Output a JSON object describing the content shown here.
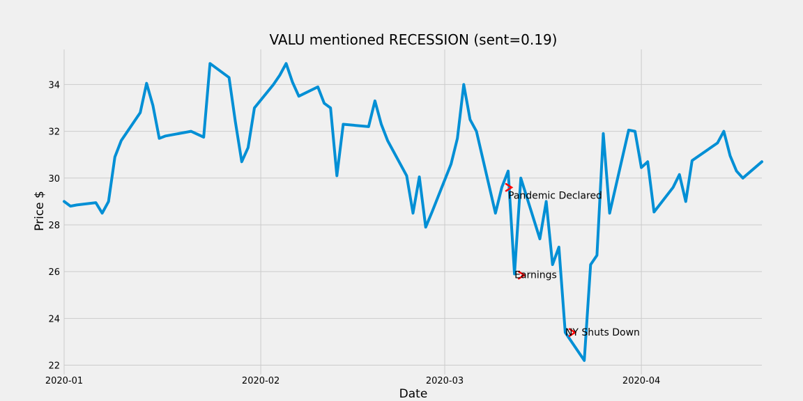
{
  "chart_data": {
    "type": "line",
    "title": "VALU mentioned RECESSION (sent=0.19)",
    "xlabel": "Date",
    "ylabel": "Price $",
    "xlim": [
      "2020-01-01",
      "2020-04-20"
    ],
    "ylim": [
      21.6,
      35.5
    ],
    "grid": true,
    "x_ticks": [
      {
        "date": "2020-01-01",
        "label": "2020-01"
      },
      {
        "date": "2020-02-01",
        "label": "2020-02"
      },
      {
        "date": "2020-03-01",
        "label": "2020-03"
      },
      {
        "date": "2020-04-01",
        "label": "2020-04"
      }
    ],
    "y_ticks": [
      22,
      24,
      26,
      28,
      30,
      32,
      34
    ],
    "series": [
      {
        "color": "#008fd5",
        "x": [
          "2020-01-01",
          "2020-01-02",
          "2020-01-03",
          "2020-01-06",
          "2020-01-07",
          "2020-01-08",
          "2020-01-09",
          "2020-01-10",
          "2020-01-13",
          "2020-01-14",
          "2020-01-15",
          "2020-01-16",
          "2020-01-17",
          "2020-01-21",
          "2020-01-23",
          "2020-01-24",
          "2020-01-27",
          "2020-01-28",
          "2020-01-29",
          "2020-01-30",
          "2020-01-31",
          "2020-02-03",
          "2020-02-04",
          "2020-02-05",
          "2020-02-06",
          "2020-02-07",
          "2020-02-10",
          "2020-02-11",
          "2020-02-12",
          "2020-02-13",
          "2020-02-14",
          "2020-02-18",
          "2020-02-19",
          "2020-02-20",
          "2020-02-21",
          "2020-02-24",
          "2020-02-25",
          "2020-02-26",
          "2020-02-27",
          "2020-02-28",
          "2020-03-02",
          "2020-03-03",
          "2020-03-04",
          "2020-03-05",
          "2020-03-06",
          "2020-03-09",
          "2020-03-10",
          "2020-03-11",
          "2020-03-12",
          "2020-03-13",
          "2020-03-16",
          "2020-03-17",
          "2020-03-18",
          "2020-03-19",
          "2020-03-20",
          "2020-03-23",
          "2020-03-24",
          "2020-03-25",
          "2020-03-26",
          "2020-03-27",
          "2020-03-30",
          "2020-03-31",
          "2020-04-01",
          "2020-04-02",
          "2020-04-03",
          "2020-04-06",
          "2020-04-07",
          "2020-04-08",
          "2020-04-09",
          "2020-04-13",
          "2020-04-14",
          "2020-04-15",
          "2020-04-16",
          "2020-04-17",
          "2020-04-20"
        ],
        "y": [
          29.0,
          28.8,
          28.85,
          28.95,
          28.5,
          29.0,
          30.9,
          31.6,
          32.8,
          34.05,
          33.1,
          31.7,
          31.8,
          32.0,
          31.75,
          34.9,
          34.3,
          32.4,
          30.7,
          31.3,
          33.0,
          34.0,
          34.4,
          34.9,
          34.1,
          33.5,
          33.9,
          33.2,
          33.0,
          30.1,
          32.3,
          32.2,
          33.3,
          32.3,
          31.6,
          30.1,
          28.5,
          30.05,
          27.9,
          28.55,
          30.6,
          31.7,
          34.0,
          32.5,
          32.0,
          28.5,
          29.6,
          30.3,
          25.9,
          30.0,
          27.4,
          29.0,
          26.3,
          27.05,
          23.4,
          22.2,
          26.3,
          26.7,
          31.9,
          28.5,
          32.05,
          32.0,
          30.45,
          30.7,
          28.55,
          29.6,
          30.15,
          29.0,
          30.75,
          31.5,
          32.0,
          30.95,
          30.3,
          30.0,
          30.7
        ]
      }
    ],
    "annotations": [
      {
        "text": "Pandemic Declared",
        "x": "2020-03-11",
        "y": 29.3,
        "arrow_x": "2020-03-11",
        "arrow_y": 29.6,
        "color": "#ff0000"
      },
      {
        "text": "Earnings",
        "x": "2020-03-12",
        "y": 25.9,
        "arrow_x": "2020-03-13",
        "arrow_y": 25.85,
        "color": "#ff0000"
      },
      {
        "text": "NY Shuts Down",
        "x": "2020-03-20",
        "y": 23.45,
        "arrow_x": "2020-03-21",
        "arrow_y": 23.4,
        "color": "#ff0000"
      }
    ]
  }
}
